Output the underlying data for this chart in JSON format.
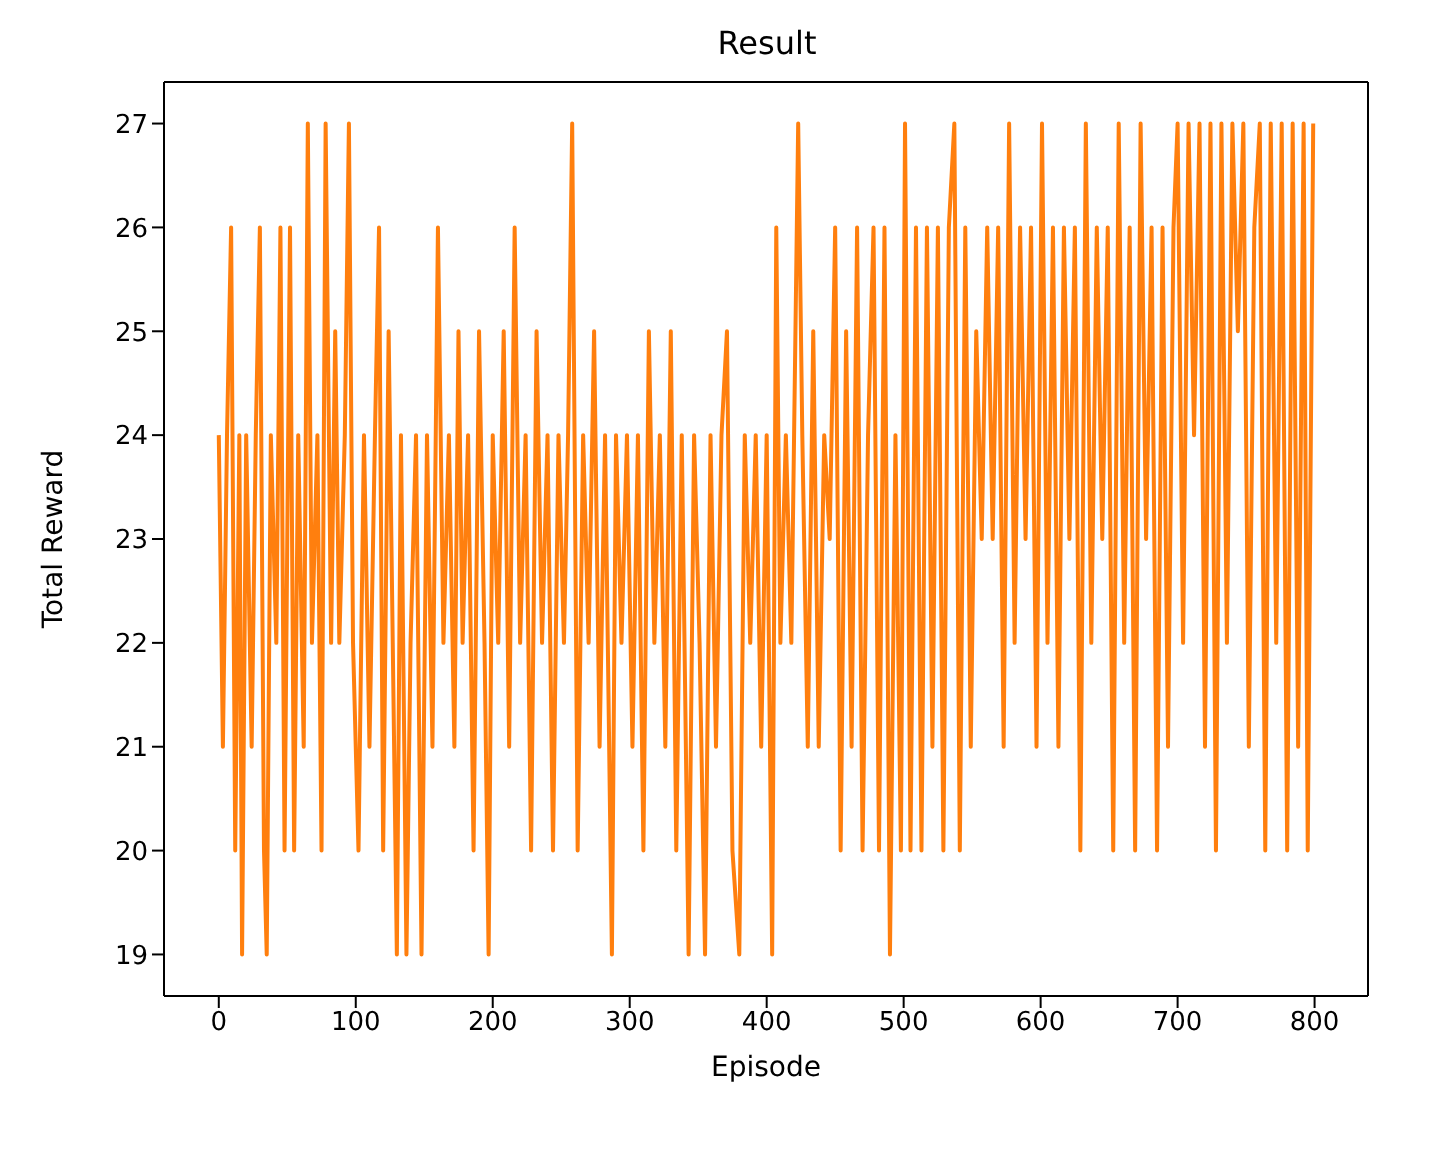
{
  "chart_data": {
    "type": "line",
    "title": "Result",
    "xlabel": "Episode",
    "ylabel": "Total Reward",
    "x": [
      0,
      3,
      6,
      9,
      12,
      15,
      17,
      20,
      24,
      27,
      30,
      33,
      35,
      38,
      42,
      45,
      48,
      52,
      55,
      58,
      62,
      65,
      68,
      72,
      75,
      78,
      82,
      85,
      88,
      92,
      95,
      98,
      102,
      106,
      110,
      114,
      117,
      120,
      124,
      127,
      130,
      133,
      137,
      140,
      144,
      148,
      152,
      156,
      160,
      164,
      168,
      172,
      175,
      178,
      182,
      186,
      190,
      194,
      197,
      200,
      204,
      208,
      212,
      216,
      220,
      224,
      228,
      232,
      236,
      240,
      244,
      248,
      252,
      255,
      258,
      262,
      266,
      270,
      274,
      278,
      282,
      287,
      290,
      294,
      298,
      302,
      306,
      310,
      314,
      318,
      322,
      326,
      330,
      334,
      338,
      343,
      347,
      351,
      355,
      359,
      363,
      367,
      371,
      375,
      380,
      384,
      388,
      392,
      396,
      400,
      404,
      407,
      410,
      414,
      418,
      423,
      426,
      430,
      434,
      438,
      442,
      446,
      450,
      454,
      458,
      462,
      466,
      470,
      474,
      478,
      482,
      486,
      490,
      494,
      498,
      501,
      505,
      509,
      513,
      517,
      521,
      525,
      529,
      533,
      537,
      541,
      545,
      549,
      553,
      557,
      561,
      565,
      569,
      573,
      577,
      581,
      585,
      589,
      593,
      597,
      601,
      605,
      609,
      613,
      617,
      621,
      625,
      629,
      633,
      637,
      641,
      645,
      649,
      653,
      657,
      661,
      665,
      669,
      673,
      677,
      681,
      685,
      689,
      693,
      697,
      700,
      704,
      708,
      712,
      716,
      720,
      724,
      728,
      732,
      736,
      740,
      744,
      748,
      752,
      756,
      760,
      764,
      768,
      772,
      776,
      780,
      784,
      788,
      792,
      795,
      799
    ],
    "series": [
      {
        "color": "#ff7f0e",
        "values": [
          24,
          21,
          24,
          26,
          20,
          24,
          19,
          24,
          21,
          24,
          26,
          20,
          19,
          24,
          22,
          26,
          20,
          26,
          20,
          24,
          21,
          27,
          22,
          24,
          20,
          27,
          22,
          25,
          22,
          24,
          27,
          22,
          20,
          24,
          21,
          24,
          26,
          20,
          25,
          22,
          19,
          24,
          19,
          22,
          24,
          19,
          24,
          21,
          26,
          22,
          24,
          21,
          25,
          22,
          24,
          20,
          25,
          22,
          19,
          24,
          22,
          25,
          21,
          26,
          22,
          24,
          20,
          25,
          22,
          24,
          20,
          24,
          22,
          24,
          27,
          20,
          24,
          22,
          25,
          21,
          24,
          19,
          24,
          22,
          24,
          21,
          24,
          20,
          25,
          22,
          24,
          21,
          25,
          20,
          24,
          19,
          24,
          22,
          19,
          24,
          21,
          24,
          25,
          20,
          19,
          24,
          22,
          24,
          21,
          24,
          19,
          26,
          22,
          24,
          22,
          27,
          24,
          21,
          25,
          21,
          24,
          23,
          26,
          20,
          25,
          21,
          26,
          20,
          24,
          26,
          20,
          26,
          19,
          24,
          20,
          27,
          20,
          26,
          20,
          26,
          21,
          26,
          20,
          26,
          27,
          20,
          26,
          21,
          25,
          23,
          26,
          23,
          26,
          21,
          27,
          22,
          26,
          23,
          26,
          21,
          27,
          22,
          26,
          21,
          26,
          23,
          26,
          20,
          27,
          22,
          26,
          23,
          26,
          20,
          27,
          22,
          26,
          20,
          27,
          23,
          26,
          20,
          26,
          21,
          26,
          27,
          22,
          27,
          24,
          27,
          21,
          27,
          20,
          27,
          22,
          27,
          25,
          27,
          21,
          26,
          27,
          20,
          27,
          22,
          27,
          20,
          27,
          21,
          27,
          20,
          27
        ]
      }
    ],
    "xlim": [
      -40,
      839
    ],
    "xticks": [
      0,
      100,
      200,
      300,
      400,
      500,
      600,
      700,
      800
    ],
    "ylim": [
      18.6,
      27.4
    ],
    "yticks": [
      19,
      20,
      21,
      22,
      23,
      24,
      25,
      26,
      27
    ],
    "grid": false,
    "legend": false,
    "marker": "none",
    "line_style": "solid"
  }
}
